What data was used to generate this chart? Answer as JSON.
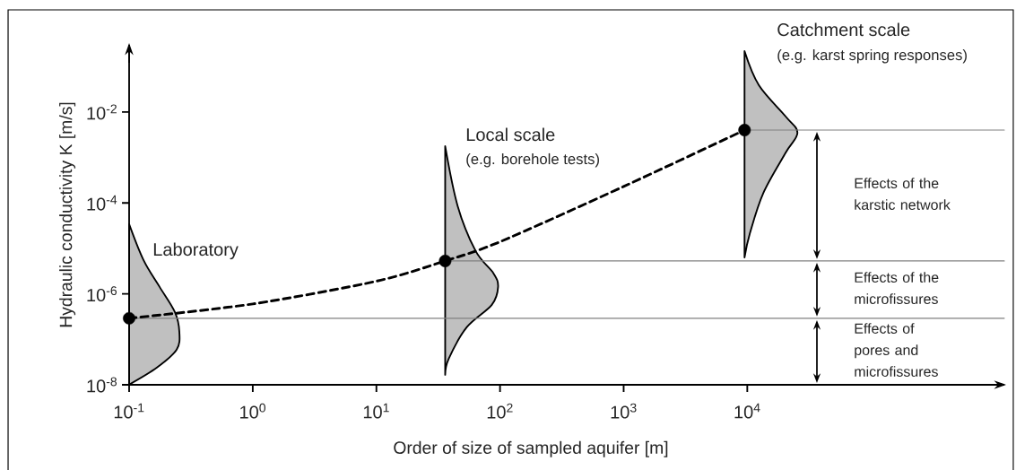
{
  "chart_data": {
    "type": "line",
    "xlabel": "Order of size of sampled aquifer [m]",
    "ylabel": "Hydraulic conductivity K [m/s]",
    "log": "xy",
    "grid": false,
    "xlim": [
      0.1,
      1200000
    ],
    "ylim": [
      1e-08,
      0.3
    ],
    "xticks": [
      {
        "value": 0.1,
        "label": "10$^{-1}$"
      },
      {
        "value": 1,
        "label": "10$^{0}$"
      },
      {
        "value": 10,
        "label": "10$^{1}$"
      },
      {
        "value": 100,
        "label": "10$^{2}$"
      },
      {
        "value": 1000,
        "label": "10$^{3}$"
      },
      {
        "value": 10000,
        "label": "10$^{4}$"
      }
    ],
    "yticks": [
      {
        "value": 1e-08,
        "label": "10$^{-8}$"
      },
      {
        "value": 1e-06,
        "label": "10$^{-6}$"
      },
      {
        "value": 0.0001,
        "label": "10$^{-4}$"
      },
      {
        "value": 0.01,
        "label": "10$^{-2}$"
      }
    ],
    "series": [
      {
        "color": "#808080",
        "line_style": "solid",
        "marker": "none",
        "x": [
          0.1,
          1200000
        ],
        "values": [
          2.9e-07,
          2.9e-07
        ]
      },
      {
        "color": "#808080",
        "line_style": "solid",
        "marker": "none",
        "x": [
          36,
          1200000
        ],
        "values": [
          5.3e-06,
          5.3e-06
        ]
      },
      {
        "color": "#808080",
        "line_style": "solid",
        "marker": "none",
        "x": [
          9500,
          1200000
        ],
        "values": [
          0.004,
          0.004
        ]
      },
      {
        "color": "#000000",
        "line_style": "dashed",
        "marker": "none",
        "x": [
          0.1,
          1,
          10,
          36,
          100,
          1000,
          9500
        ],
        "values": [
          2.9e-07,
          6e-07,
          1.9e-06,
          5.3e-06,
          1.4e-05,
          0.00023,
          0.004
        ]
      },
      {
        "type": "scatter",
        "color": "#000000",
        "marker": "circle",
        "x": [
          0.1,
          36,
          9500
        ],
        "values": [
          2.9e-07,
          5.3e-06,
          0.004
        ]
      }
    ],
    "annotations": [
      "Laboratory",
      "Local scale",
      "(e.g. borehole tests)",
      "Catchment scale",
      "(e.g. karst spring responses)",
      "Effects of the karstic network",
      "Effects of the microfissures",
      "Effects of pores and microfissures"
    ]
  }
}
